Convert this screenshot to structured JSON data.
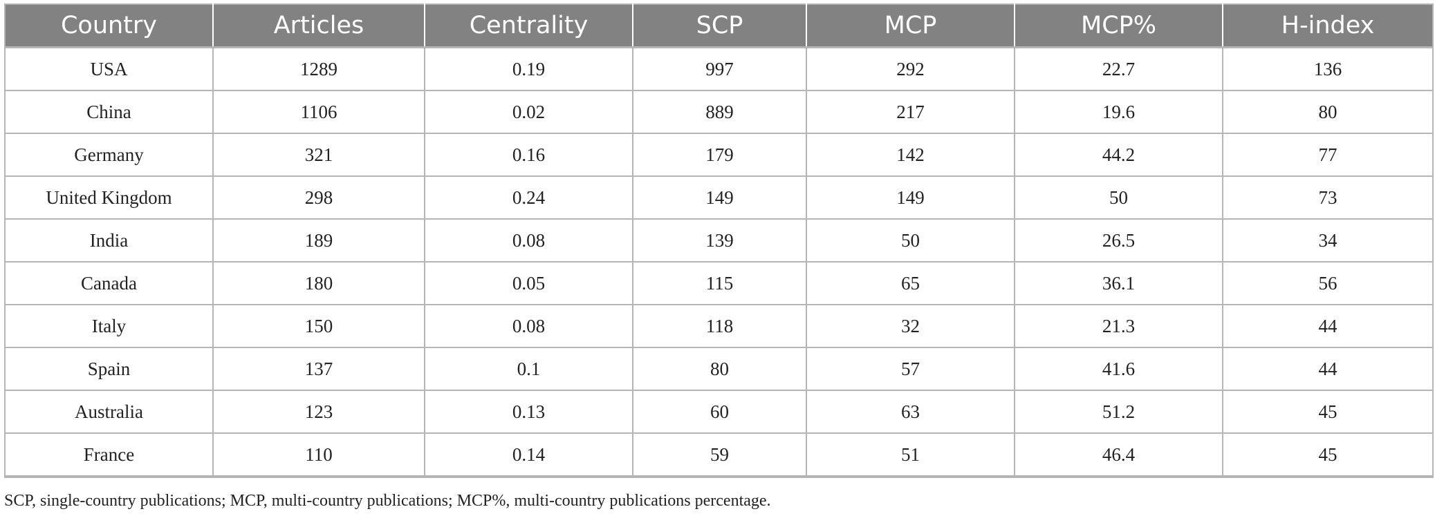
{
  "table": {
    "headers": [
      "Country",
      "Articles",
      "Centrality",
      "SCP",
      "MCP",
      "MCP%",
      "H-index"
    ],
    "rows": [
      [
        "USA",
        "1289",
        "0.19",
        "997",
        "292",
        "22.7",
        "136"
      ],
      [
        "China",
        "1106",
        "0.02",
        "889",
        "217",
        "19.6",
        "80"
      ],
      [
        "Germany",
        "321",
        "0.16",
        "179",
        "142",
        "44.2",
        "77"
      ],
      [
        "United Kingdom",
        "298",
        "0.24",
        "149",
        "149",
        "50",
        "73"
      ],
      [
        "India",
        "189",
        "0.08",
        "139",
        "50",
        "26.5",
        "34"
      ],
      [
        "Canada",
        "180",
        "0.05",
        "115",
        "65",
        "36.1",
        "56"
      ],
      [
        "Italy",
        "150",
        "0.08",
        "118",
        "32",
        "21.3",
        "44"
      ],
      [
        "Spain",
        "137",
        "0.1",
        "80",
        "57",
        "41.6",
        "44"
      ],
      [
        "Australia",
        "123",
        "0.13",
        "60",
        "63",
        "51.2",
        "45"
      ],
      [
        "France",
        "110",
        "0.14",
        "59",
        "51",
        "46.4",
        "45"
      ]
    ]
  },
  "footnote": "SCP, single-country publications; MCP, multi-country publications; MCP%, multi-country publications percentage.",
  "colors": {
    "header_background": "#828282",
    "header_text": "#ffffff",
    "grid_line": "#b5b5b5"
  }
}
